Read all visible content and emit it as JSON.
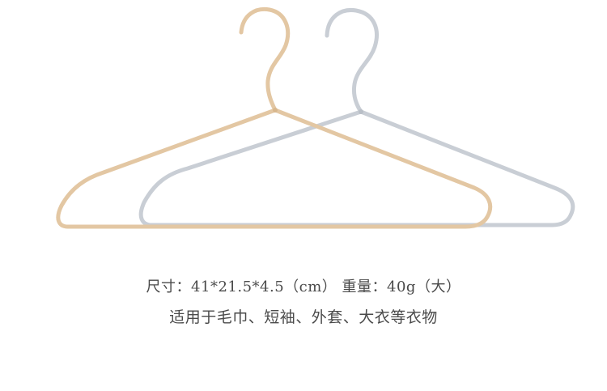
{
  "product": {
    "spec_line": "尺寸：41*21.5*4.5（cm） 重量：40g（大）",
    "usage_line": "适用于毛巾、短袖、外套、大衣等衣物",
    "colors": {
      "gold_hanger": "#e3c7a3",
      "silver_hanger": "#c9ced5",
      "text": "#4a4a4a",
      "background": "#ffffff"
    }
  }
}
